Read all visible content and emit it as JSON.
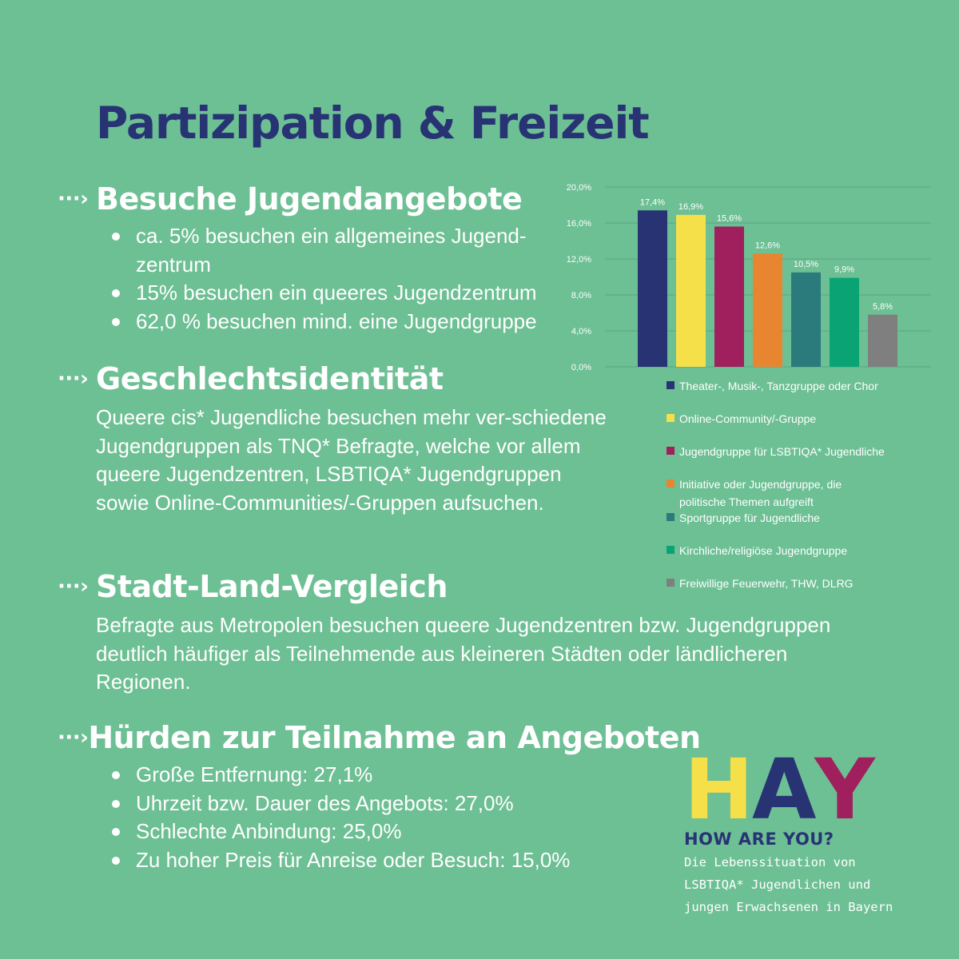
{
  "page": {
    "title": "Partizipation & Freizeit",
    "arrow_glyph": "···›",
    "background": "#6dbf94",
    "title_color": "#283374"
  },
  "sections": {
    "jugendangebote": {
      "heading": "Besuche Jugendangebote",
      "bullets": [
        "ca. 5% besuchen ein allgemeines Jugend-zentrum",
        "15% besuchen ein queeres Jugendzentrum",
        "62,0 % besuchen mind. eine Jugendgruppe"
      ]
    },
    "geschlechtsidentitaet": {
      "heading": "Geschlechtsidentität",
      "text": "Queere cis* Jugendliche besuchen mehr ver-schiedene Jugendgruppen als TNQ* Befragte, welche vor allem queere Jugendzentren, LSBTIQA* Jugendgruppen sowie Online-Communities/-Gruppen aufsuchen."
    },
    "stadt_land": {
      "heading": "Stadt-Land-Vergleich",
      "text": "Befragte aus Metropolen besuchen queere Jugendzentren bzw. Jugendgruppen deutlich häufiger als Teilnehmende aus kleineren Städten oder ländlicheren Regionen."
    },
    "huerden": {
      "heading": "Hürden zur Teilnahme an Angeboten",
      "bullets": [
        "Große Entfernung: 27,1%",
        "Uhrzeit bzw. Dauer des Angebots: 27,0%",
        "Schlechte Anbindung: 25,0%",
        "Zu hoher Preis für Anreise oder Besuch: 15,0%"
      ]
    }
  },
  "chart_data": {
    "type": "bar",
    "categories": [
      "Theater-, Musik-, Tanzgruppe oder Chor",
      "Online-Community/-Gruppe",
      "Jugendgruppe für LSBTIQA* Jugendliche",
      "Initiative oder Jugendgruppe, die politische Themen aufgreift",
      "Sportgruppe für Jugendliche",
      "Kirchliche/religiöse Jugendgruppe",
      "Freiwillige Feuerwehr, THW, DLRG"
    ],
    "values": [
      17.4,
      16.9,
      15.6,
      12.6,
      10.5,
      9.9,
      5.8
    ],
    "value_labels": [
      "17,4%",
      "16,9%",
      "15,6%",
      "12,6%",
      "10,5%",
      "9,9%",
      "5,8%"
    ],
    "colors": [
      "#283374",
      "#f5e04a",
      "#a01f5d",
      "#e88530",
      "#2b7b7c",
      "#0aa374",
      "#7f7f7f"
    ],
    "yticks": [
      "0,0%",
      "4,0%",
      "8,0%",
      "12,0%",
      "16,0%",
      "20,0%"
    ],
    "ylim": [
      0,
      20
    ],
    "grid": true,
    "legend_placement": "bottom"
  },
  "logo": {
    "letters": [
      {
        "char": "H",
        "color": "#f5e04a"
      },
      {
        "char": "A",
        "color": "#283374"
      },
      {
        "char": "Y",
        "color": "#a01f5d"
      }
    ],
    "tagline": "HOW ARE YOU?",
    "tagline_color": "#283374",
    "subtitle": [
      "Die Lebenssituation von",
      "LSBTIQA* Jugendlichen und",
      "jungen Erwachsenen in Bayern"
    ]
  }
}
